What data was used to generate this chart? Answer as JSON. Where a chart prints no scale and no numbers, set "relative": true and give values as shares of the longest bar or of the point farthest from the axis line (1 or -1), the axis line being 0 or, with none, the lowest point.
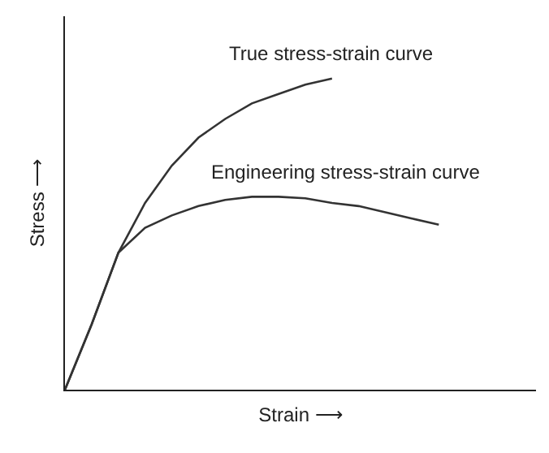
{
  "chart_data": {
    "type": "line",
    "relative": true,
    "xlabel": "Strain ⟶",
    "ylabel": "Stress ⟶",
    "legend": false,
    "marker": "none",
    "line_style": "solid",
    "categories": [
      null,
      null,
      null,
      null,
      null,
      null,
      null,
      null,
      null,
      null,
      null,
      null,
      null,
      null,
      null
    ],
    "series": [
      {
        "name": "True stress-strain curve",
        "color": "#333333",
        "values": [
          0,
          0.21,
          0.44,
          0.6,
          0.72,
          0.81,
          0.87,
          0.92,
          0.95,
          0.98,
          1.0,
          null,
          null,
          null,
          null
        ]
      },
      {
        "name": "Engineering stress-strain curve",
        "color": "#333333",
        "values": [
          0,
          0.21,
          0.44,
          0.52,
          0.56,
          0.59,
          0.61,
          0.62,
          0.62,
          0.615,
          0.6,
          0.59,
          0.57,
          0.55,
          0.53
        ]
      }
    ]
  }
}
